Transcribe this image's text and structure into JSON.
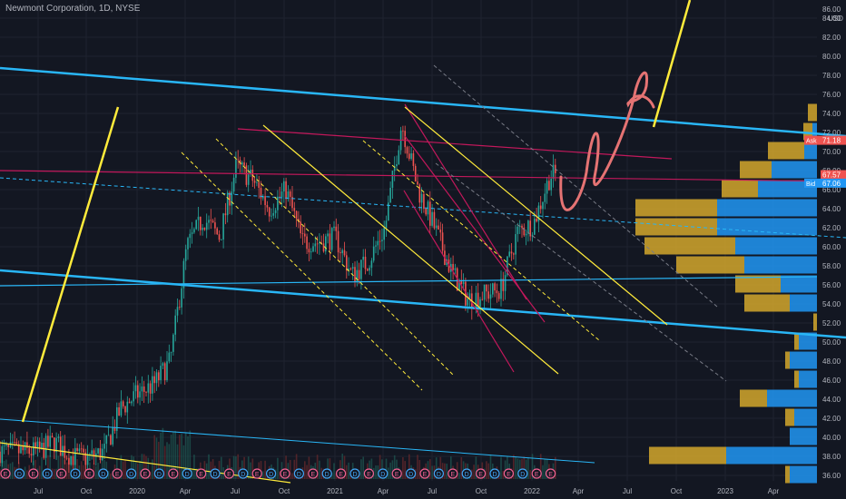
{
  "header": {
    "title": "Newmont Corporation, 1D, NYSE"
  },
  "axis": {
    "currency": "USD",
    "top_label": "86.00"
  },
  "colors": {
    "background": "#131722",
    "up": "#26a69a",
    "down": "#ef5350",
    "grid": "#1f2330",
    "channel": "#29b6f6",
    "yellow": "#ffeb3b",
    "pink": "#e91e63",
    "ask": "#ef5350",
    "bid": "#2196f3",
    "last": "#ef5350",
    "vp_buy": "#2196f3",
    "vp_sell": "#d4a72c"
  },
  "price_labels": [
    {
      "name": "ask",
      "tag": "Ask",
      "value": "71.18"
    },
    {
      "name": "last",
      "tag": "",
      "value": "67.57"
    },
    {
      "name": "bid",
      "tag": "Bid",
      "value": "67.06"
    }
  ],
  "chart_data": {
    "type": "candlestick",
    "title": "Newmont Corporation, 1D, NYSE",
    "ylabel": "USD",
    "ylim": [
      35,
      86
    ],
    "y_ticks": [
      36,
      38,
      40,
      42,
      44,
      46,
      48,
      50,
      52,
      54,
      56,
      58,
      60,
      62,
      64,
      66,
      68,
      70,
      72,
      74,
      76,
      78,
      80,
      82,
      84
    ],
    "x_ticks": [
      "Jul",
      "Oct",
      "2020",
      "Apr",
      "Jul",
      "Oct",
      "2021",
      "Apr",
      "Jul",
      "Oct",
      "2022",
      "Apr",
      "Jul",
      "Oct",
      "2023",
      "Apr"
    ],
    "grid": true,
    "price_path": [
      [
        "2019-06",
        38.5
      ],
      [
        "2019-07",
        38.5
      ],
      [
        "2019-08",
        39.5
      ],
      [
        "2019-09",
        38.0
      ],
      [
        "2019-10",
        37.8
      ],
      [
        "2019-11",
        38.5
      ],
      [
        "2019-12",
        43.0
      ],
      [
        "2020-01",
        44.5
      ],
      [
        "2020-02",
        45.5
      ],
      [
        "2020-03",
        48.0
      ],
      [
        "2020-04",
        60.0
      ],
      [
        "2020-05",
        63.0
      ],
      [
        "2020-06",
        61.0
      ],
      [
        "2020-07",
        68.5
      ],
      [
        "2020-08",
        67.0
      ],
      [
        "2020-09",
        64.0
      ],
      [
        "2020-10",
        66.0
      ],
      [
        "2020-11",
        60.5
      ],
      [
        "2020-12",
        60.5
      ],
      [
        "2021-01",
        61.0
      ],
      [
        "2021-02",
        57.0
      ],
      [
        "2021-03",
        58.5
      ],
      [
        "2021-04",
        62.0
      ],
      [
        "2021-05",
        73.0
      ],
      [
        "2021-06",
        66.0
      ],
      [
        "2021-07",
        62.0
      ],
      [
        "2021-08",
        57.5
      ],
      [
        "2021-09",
        54.5
      ],
      [
        "2021-10",
        55.0
      ],
      [
        "2021-11",
        55.5
      ],
      [
        "2021-12",
        61.5
      ],
      [
        "2022-01",
        62.5
      ],
      [
        "2022-02",
        67.5
      ]
    ],
    "last": 67.57,
    "ask": 71.18,
    "bid": 67.06,
    "event_markers": [
      "E",
      "D",
      "E",
      "D",
      "E",
      "D",
      "E",
      "D",
      "E",
      "D",
      "E",
      "D",
      "E",
      "D",
      "E",
      "D",
      "E",
      "D",
      "E",
      "D",
      "E",
      "D",
      "E",
      "D",
      "E",
      "D",
      "E",
      "D",
      "E",
      "D",
      "E",
      "D",
      "E",
      "D",
      "E",
      "D",
      "E",
      "D",
      "E",
      "E"
    ],
    "volume_profile": [
      {
        "price": 74,
        "buy": 0,
        "sell": 10
      },
      {
        "price": 72,
        "buy": 5,
        "sell": 10
      },
      {
        "price": 70,
        "buy": 14,
        "sell": 40
      },
      {
        "price": 68,
        "buy": 50,
        "sell": 35
      },
      {
        "price": 66,
        "buy": 65,
        "sell": 40
      },
      {
        "price": 64,
        "buy": 110,
        "sell": 90
      },
      {
        "price": 62,
        "buy": 110,
        "sell": 90
      },
      {
        "price": 60,
        "buy": 90,
        "sell": 100
      },
      {
        "price": 58,
        "buy": 80,
        "sell": 75
      },
      {
        "price": 56,
        "buy": 40,
        "sell": 50
      },
      {
        "price": 54,
        "buy": 30,
        "sell": 50
      },
      {
        "price": 52,
        "buy": 0,
        "sell": 4
      },
      {
        "price": 50,
        "buy": 20,
        "sell": 5
      },
      {
        "price": 48,
        "buy": 30,
        "sell": 5
      },
      {
        "price": 46,
        "buy": 20,
        "sell": 5
      },
      {
        "price": 44,
        "buy": 55,
        "sell": 30
      },
      {
        "price": 42,
        "buy": 25,
        "sell": 10
      },
      {
        "price": 40,
        "buy": 30,
        "sell": 0
      },
      {
        "price": 38,
        "buy": 100,
        "sell": 85
      },
      {
        "price": 36,
        "buy": 30,
        "sell": 5
      }
    ]
  }
}
